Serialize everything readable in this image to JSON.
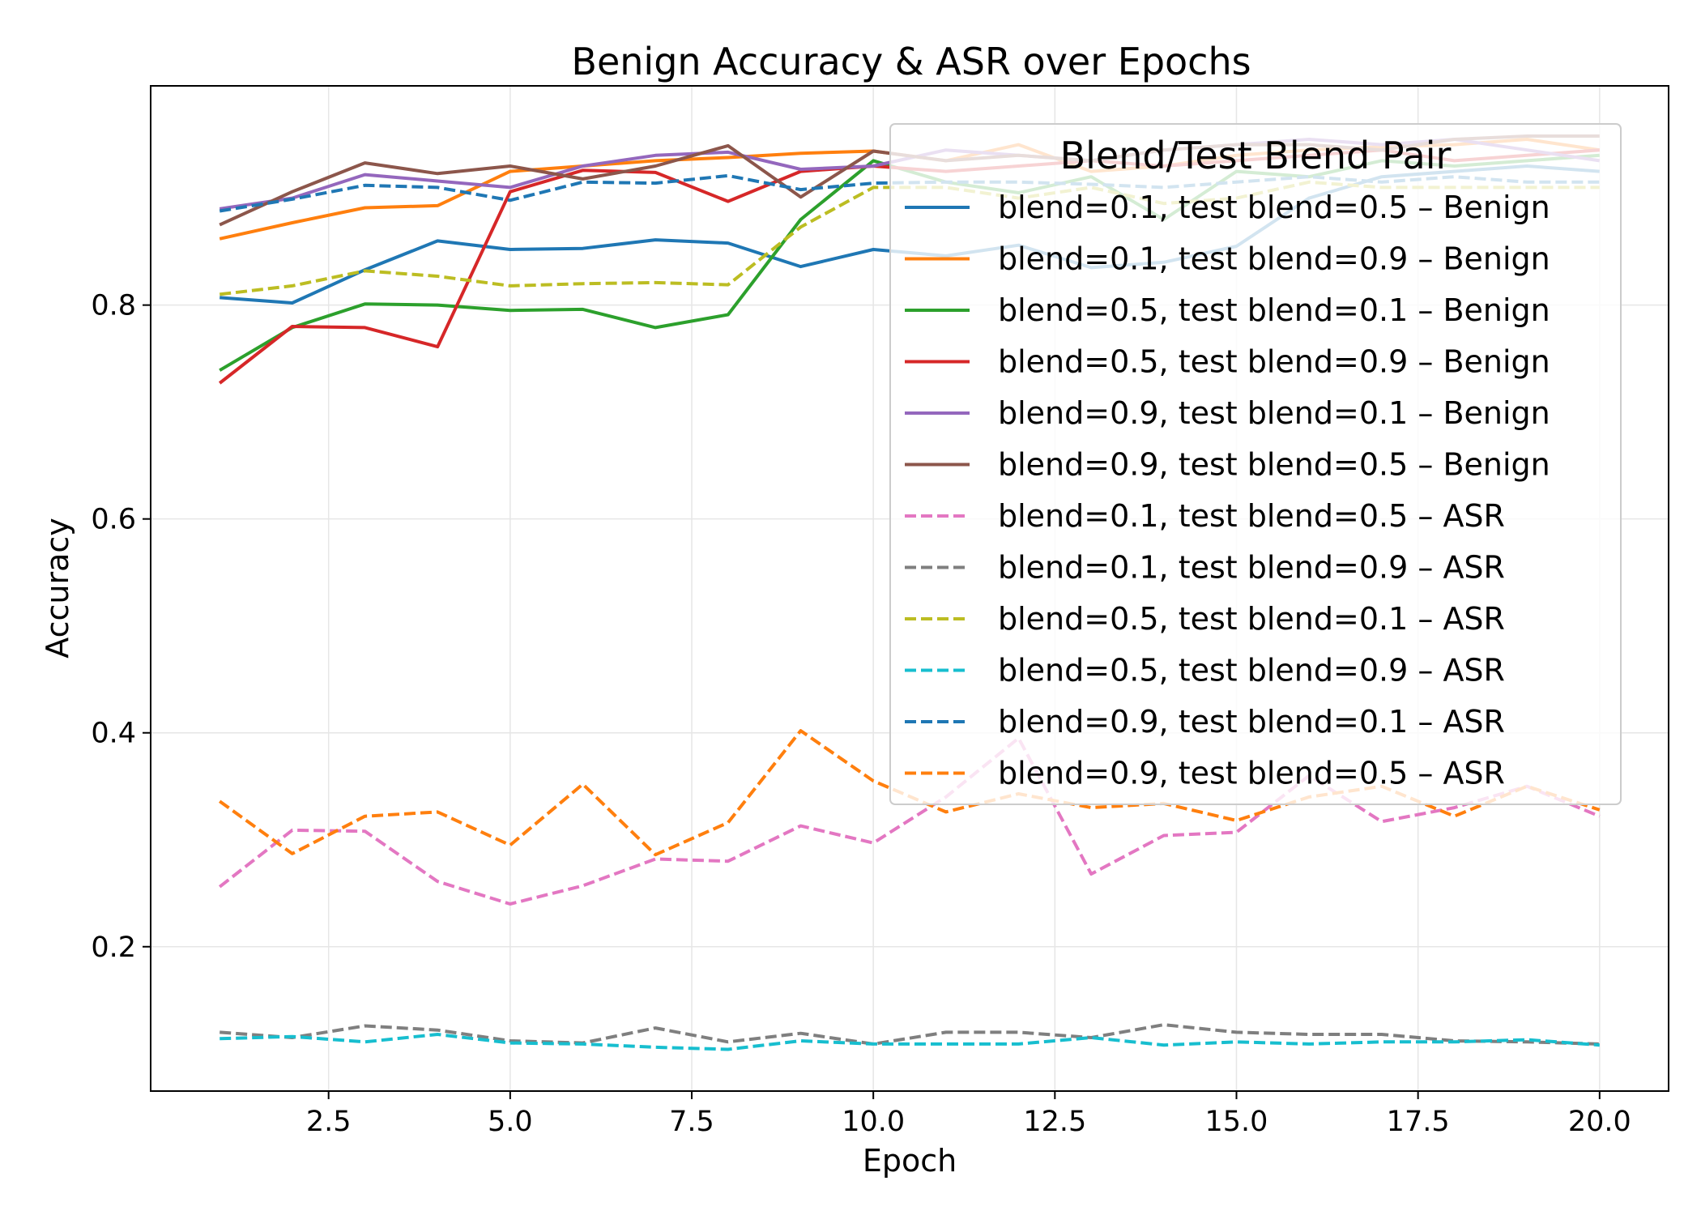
{
  "chart_data": {
    "type": "line",
    "title": "Benign Accuracy & ASR over Epochs",
    "xlabel": "Epoch",
    "ylabel": "Accuracy",
    "xlim": [
      0.05,
      20.95
    ],
    "ylim": [
      0.065,
      1.005
    ],
    "xticks": [
      2.5,
      5.0,
      7.5,
      10.0,
      12.5,
      15.0,
      17.5,
      20.0
    ],
    "xtick_labels": [
      "2.5",
      "5.0",
      "7.5",
      "10.0",
      "12.5",
      "15.0",
      "17.5",
      "20.0"
    ],
    "yticks": [
      0.2,
      0.4,
      0.6,
      0.8
    ],
    "ytick_labels": [
      "0.2",
      "0.4",
      "0.6",
      "0.8"
    ],
    "grid": true,
    "legend": {
      "title": "Blend/Test Blend Pair",
      "placement": "top-right"
    },
    "x": [
      1,
      2,
      3,
      4,
      5,
      6,
      7,
      8,
      9,
      10,
      11,
      12,
      13,
      14,
      15,
      16,
      17,
      18,
      19,
      20
    ],
    "series": [
      {
        "name": "blend=0.1, test blend=0.5 – Benign",
        "color": "#1f77b4",
        "style": "solid",
        "values": [
          0.807,
          0.802,
          0.833,
          0.86,
          0.852,
          0.853,
          0.861,
          0.858,
          0.836,
          0.852,
          0.846,
          0.856,
          0.835,
          0.84,
          0.855,
          0.9,
          0.92,
          0.925,
          0.93,
          0.925
        ]
      },
      {
        "name": "blend=0.1, test blend=0.9 – Benign",
        "color": "#ff7f0e",
        "style": "solid",
        "values": [
          0.862,
          0.877,
          0.891,
          0.893,
          0.925,
          0.93,
          0.935,
          0.938,
          0.942,
          0.944,
          0.935,
          0.95,
          0.925,
          0.93,
          0.94,
          0.945,
          0.948,
          0.95,
          0.955,
          0.945
        ]
      },
      {
        "name": "blend=0.5, test blend=0.1 – Benign",
        "color": "#2ca02c",
        "style": "solid",
        "values": [
          0.739,
          0.779,
          0.801,
          0.8,
          0.795,
          0.796,
          0.779,
          0.791,
          0.88,
          0.935,
          0.915,
          0.905,
          0.92,
          0.88,
          0.925,
          0.92,
          0.935,
          0.93,
          0.935,
          0.94
        ]
      },
      {
        "name": "blend=0.5, test blend=0.9 – Benign",
        "color": "#d62728",
        "style": "solid",
        "values": [
          0.727,
          0.78,
          0.779,
          0.761,
          0.906,
          0.926,
          0.924,
          0.897,
          0.925,
          0.93,
          0.925,
          0.93,
          0.935,
          0.93,
          0.935,
          0.94,
          0.945,
          0.935,
          0.94,
          0.945
        ]
      },
      {
        "name": "blend=0.9, test blend=0.1 – Benign",
        "color": "#9467bd",
        "style": "solid",
        "values": [
          0.89,
          0.9,
          0.922,
          0.916,
          0.91,
          0.93,
          0.94,
          0.943,
          0.927,
          0.93,
          0.945,
          0.94,
          0.935,
          0.945,
          0.95,
          0.955,
          0.95,
          0.955,
          0.945,
          0.935
        ]
      },
      {
        "name": "blend=0.9, test blend=0.5 – Benign",
        "color": "#8c564b",
        "style": "solid",
        "values": [
          0.875,
          0.906,
          0.933,
          0.923,
          0.93,
          0.918,
          0.93,
          0.949,
          0.901,
          0.944,
          0.935,
          0.94,
          0.935,
          0.945,
          0.95,
          0.95,
          0.945,
          0.955,
          0.958,
          0.958
        ]
      },
      {
        "name": "blend=0.1, test blend=0.5 – ASR",
        "color": "#e377c2",
        "style": "dashed",
        "values": [
          0.256,
          0.309,
          0.308,
          0.261,
          0.24,
          0.257,
          0.282,
          0.28,
          0.313,
          0.297,
          0.34,
          0.395,
          0.268,
          0.304,
          0.307,
          0.36,
          0.317,
          0.33,
          0.35,
          0.322
        ]
      },
      {
        "name": "blend=0.1, test blend=0.9 – ASR",
        "color": "#7f7f7f",
        "style": "dashed",
        "values": [
          0.12,
          0.115,
          0.126,
          0.122,
          0.112,
          0.11,
          0.124,
          0.111,
          0.119,
          0.109,
          0.12,
          0.12,
          0.115,
          0.127,
          0.12,
          0.118,
          0.118,
          0.112,
          0.111,
          0.109
        ]
      },
      {
        "name": "blend=0.5, test blend=0.1 – ASR",
        "color": "#bcbd22",
        "style": "dashed",
        "values": [
          0.81,
          0.818,
          0.832,
          0.827,
          0.818,
          0.82,
          0.821,
          0.819,
          0.873,
          0.91,
          0.91,
          0.9,
          0.91,
          0.895,
          0.9,
          0.915,
          0.91,
          0.91,
          0.91,
          0.91
        ]
      },
      {
        "name": "blend=0.5, test blend=0.9 – ASR",
        "color": "#17becf",
        "style": "dashed",
        "values": [
          0.114,
          0.116,
          0.111,
          0.118,
          0.11,
          0.109,
          0.106,
          0.104,
          0.112,
          0.109,
          0.109,
          0.109,
          0.115,
          0.108,
          0.111,
          0.109,
          0.111,
          0.111,
          0.113,
          0.108
        ]
      },
      {
        "name": "blend=0.9, test blend=0.1 – ASR",
        "color": "#1f77b4",
        "style": "dashed",
        "values": [
          0.888,
          0.899,
          0.912,
          0.91,
          0.898,
          0.915,
          0.914,
          0.921,
          0.908,
          0.914,
          0.915,
          0.915,
          0.913,
          0.91,
          0.915,
          0.92,
          0.915,
          0.92,
          0.915,
          0.915
        ]
      },
      {
        "name": "blend=0.9, test blend=0.5 – ASR",
        "color": "#ff7f0e",
        "style": "dashed",
        "values": [
          0.336,
          0.287,
          0.322,
          0.326,
          0.295,
          0.352,
          0.286,
          0.316,
          0.402,
          0.355,
          0.326,
          0.343,
          0.33,
          0.334,
          0.318,
          0.34,
          0.35,
          0.322,
          0.35,
          0.328
        ]
      }
    ]
  }
}
